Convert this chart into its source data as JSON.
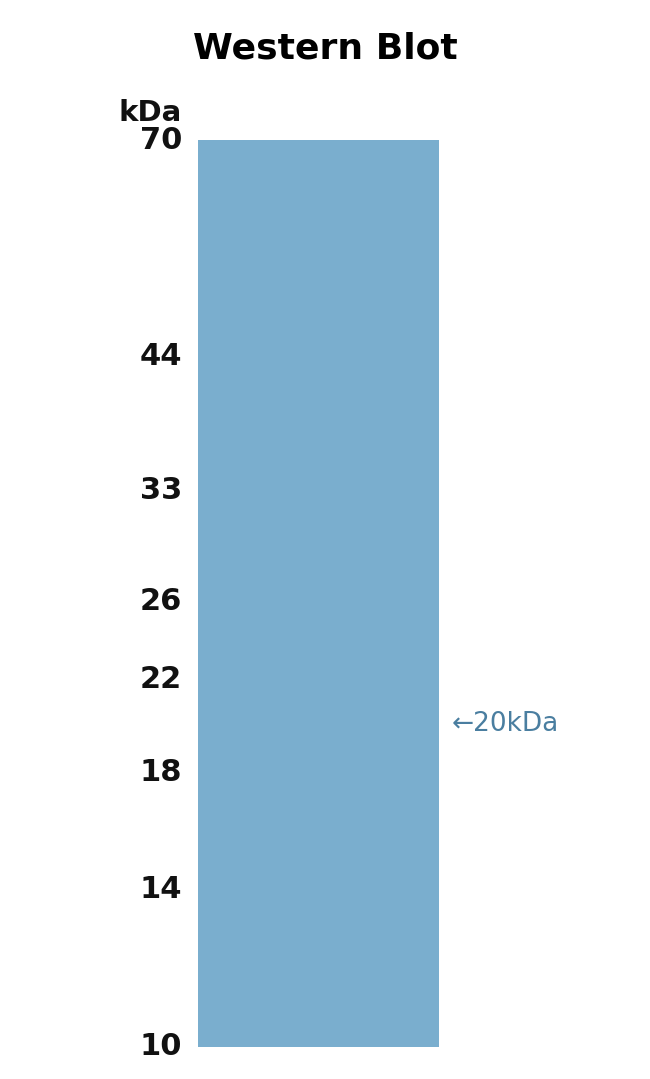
{
  "title": "Western Blot",
  "title_fontsize": 26,
  "title_fontweight": "bold",
  "title_color": "#000000",
  "background_color": "#ffffff",
  "blot_color": "#7aaece",
  "band_color": "#1a1a1a",
  "band_linewidth": 4.5,
  "kda_labels": [
    70,
    44,
    33,
    26,
    22,
    18,
    14,
    10
  ],
  "kda_unit_label": "kDa",
  "label_fontsize": 22,
  "label_fontweight": "bold",
  "annotation_fontsize": 19,
  "arrow_color": "#5588aa",
  "annotation_label": "20kDa",
  "band_kda": 20.0
}
